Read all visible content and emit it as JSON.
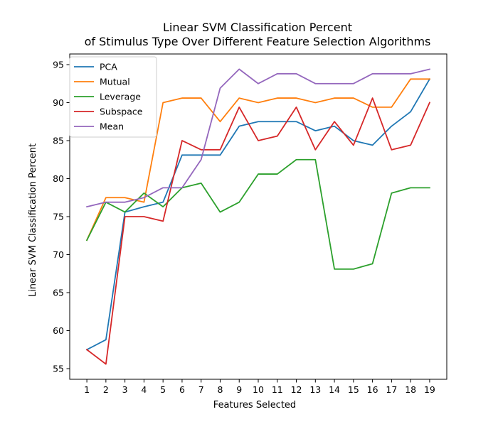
{
  "chart_data": {
    "type": "line",
    "title_line1": "Linear SVM Classification Percent",
    "title_line2": "of Stimulus Type Over Different Feature Selection Algorithms",
    "xlabel": "Features Selected",
    "ylabel": "Linear SVM Classification Percent",
    "x": [
      1,
      2,
      3,
      4,
      5,
      6,
      7,
      8,
      9,
      10,
      11,
      12,
      13,
      14,
      15,
      16,
      17,
      18,
      19
    ],
    "xlim": [
      0.1,
      19.9
    ],
    "ylim": [
      53.6,
      96.4
    ],
    "yticks": [
      55,
      60,
      65,
      70,
      75,
      80,
      85,
      90,
      95
    ],
    "grid": false,
    "legend_position": "upper-left",
    "series": [
      {
        "name": "PCA",
        "color": "#1f77b4",
        "values": [
          57.5,
          58.8,
          75.6,
          76.3,
          76.9,
          83.1,
          83.1,
          83.1,
          86.9,
          87.5,
          87.5,
          87.5,
          86.3,
          86.9,
          85.0,
          84.4,
          86.9,
          88.8,
          93.1
        ]
      },
      {
        "name": "Mutual",
        "color": "#ff7f0e",
        "values": [
          71.9,
          77.5,
          77.5,
          76.9,
          90.0,
          90.6,
          90.6,
          87.5,
          90.6,
          90.0,
          90.6,
          90.6,
          90.0,
          90.6,
          90.6,
          89.4,
          89.4,
          93.1,
          93.1
        ]
      },
      {
        "name": "Leverage",
        "color": "#2ca02c",
        "values": [
          71.9,
          76.9,
          75.6,
          78.1,
          76.3,
          78.8,
          79.4,
          75.6,
          76.9,
          80.6,
          80.6,
          82.5,
          82.5,
          68.1,
          68.1,
          68.8,
          78.1,
          78.8,
          78.8
        ]
      },
      {
        "name": "Subspace",
        "color": "#d62728",
        "values": [
          57.5,
          55.6,
          75.0,
          75.0,
          74.4,
          85.0,
          83.8,
          83.8,
          89.4,
          85.0,
          85.6,
          89.4,
          83.8,
          87.5,
          84.4,
          90.6,
          83.8,
          84.4,
          90.0
        ]
      },
      {
        "name": "Mean",
        "color": "#9467bd",
        "values": [
          76.3,
          76.9,
          76.9,
          77.5,
          78.8,
          78.8,
          82.5,
          91.9,
          94.4,
          92.5,
          93.8,
          93.8,
          92.5,
          92.5,
          92.5,
          93.8,
          93.8,
          93.8,
          94.4
        ]
      }
    ]
  }
}
